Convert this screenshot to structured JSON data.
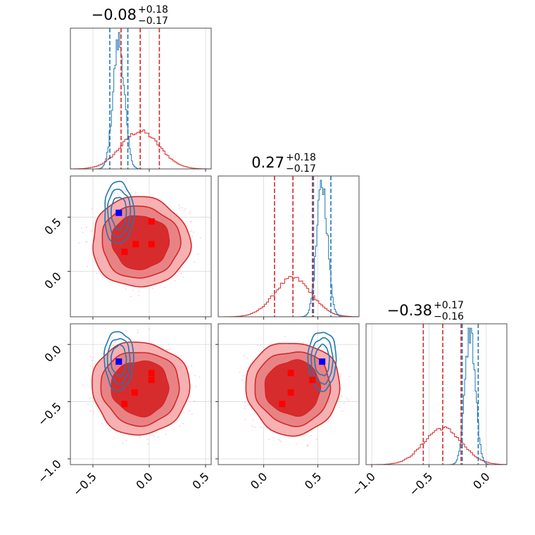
{
  "chart_data": {
    "type": "corner",
    "colors": {
      "red": "#d62728",
      "blue": "#1f77b4",
      "truth": "#0000ff",
      "red_point": "#ff0000",
      "grid": "#d9d9d9"
    },
    "axis_ticks": {
      "p0": {
        "values": [
          -0.5,
          0.0,
          0.5
        ],
        "labels": [
          "−0.5",
          "0.0",
          "0.5"
        ]
      },
      "p1": {
        "values": [
          0.0,
          0.5
        ],
        "labels": [
          "0.0",
          "0.5"
        ]
      },
      "p1_bottom": {
        "values": [
          0.0,
          0.5
        ],
        "labels": [
          "0.0",
          "0.5"
        ]
      },
      "p2": {
        "values": [
          -1.0,
          -0.5,
          0.0
        ],
        "labels": [
          "−1.0",
          "−0.5",
          "0.0"
        ]
      }
    },
    "titles": [
      {
        "param": 0,
        "median": "−0.08",
        "upper": "+0.18",
        "lower": "−0.17"
      },
      {
        "param": 1,
        "median": "0.27",
        "upper": "+0.18",
        "lower": "−0.17"
      },
      {
        "param": 2,
        "median": "−0.38",
        "upper": "+0.17",
        "lower": "−0.16"
      }
    ],
    "ranges": {
      "p0": [
        -0.7,
        0.55
      ],
      "p1": [
        -0.42,
        0.88
      ],
      "p2": [
        -1.05,
        0.18
      ]
    },
    "marginals": {
      "p0": {
        "red": {
          "mean": -0.08,
          "sd": 0.17,
          "quantiles": [
            -0.25,
            0.09
          ]
        },
        "blue": {
          "mean": -0.27,
          "sd": 0.05,
          "quantiles": [
            -0.35,
            -0.19
          ]
        },
        "truth": -0.25
      },
      "p1": {
        "red": {
          "mean": 0.27,
          "sd": 0.17,
          "quantiles": [
            0.1,
            0.45
          ]
        },
        "blue": {
          "mean": 0.54,
          "sd": 0.05,
          "quantiles": [
            0.46,
            0.62
          ]
        },
        "truth": 0.46
      },
      "p2": {
        "red": {
          "mean": -0.38,
          "sd": 0.165,
          "quantiles": [
            -0.55,
            -0.22
          ]
        },
        "blue": {
          "mean": -0.14,
          "sd": 0.045,
          "quantiles": [
            -0.21,
            -0.07
          ]
        },
        "truth": -0.21
      }
    },
    "joint_points": {
      "p1_vs_p0": {
        "red": [
          [
            -0.22,
            0.18
          ],
          [
            -0.12,
            0.25
          ],
          [
            0.02,
            0.25
          ],
          [
            0.02,
            0.46
          ]
        ],
        "blue": [
          [
            -0.27,
            0.54
          ]
        ]
      },
      "p2_vs_p0": {
        "red": [
          [
            -0.22,
            -0.52
          ],
          [
            -0.13,
            -0.42
          ],
          [
            0.02,
            -0.25
          ],
          [
            0.02,
            -0.31
          ]
        ],
        "blue": [
          [
            -0.27,
            -0.15
          ]
        ]
      },
      "p2_vs_p1": {
        "red": [
          [
            0.17,
            -0.52
          ],
          [
            0.25,
            -0.42
          ],
          [
            0.25,
            -0.25
          ],
          [
            0.45,
            -0.31
          ]
        ],
        "blue": [
          [
            0.54,
            -0.15
          ]
        ]
      }
    }
  }
}
